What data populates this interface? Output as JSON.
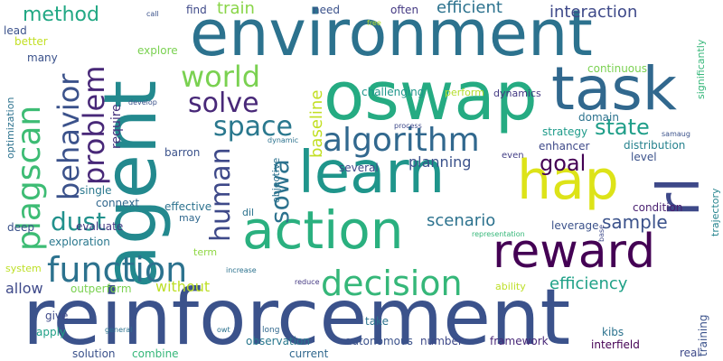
{
  "words": [
    {
      "text": "reinforcement",
      "size": 86,
      "color": "#3b528b",
      "vertical": false
    },
    {
      "text": "agent",
      "size": 80,
      "color": "#23898e",
      "vertical": true
    },
    {
      "text": "environment",
      "size": 70,
      "color": "#2c728e",
      "vertical": false
    },
    {
      "text": "oswap",
      "size": 74,
      "color": "#25ab82",
      "vertical": false
    },
    {
      "text": "task",
      "size": 66,
      "color": "#31688e",
      "vertical": false
    },
    {
      "text": "learn",
      "size": 64,
      "color": "#1f958b",
      "vertical": false
    },
    {
      "text": "hap",
      "size": 60,
      "color": "#dde318",
      "vertical": false
    },
    {
      "text": "rl",
      "size": 64,
      "color": "#3e4989",
      "vertical": true
    },
    {
      "text": "action",
      "size": 58,
      "color": "#2ab07f",
      "vertical": false
    },
    {
      "text": "reward",
      "size": 52,
      "color": "#440154",
      "vertical": false
    },
    {
      "text": "function",
      "size": 38,
      "color": "#2c728e",
      "vertical": false
    },
    {
      "text": "decision",
      "size": 38,
      "color": "#35b779",
      "vertical": false
    },
    {
      "text": "algorithm",
      "size": 36,
      "color": "#31688e",
      "vertical": false
    },
    {
      "text": "plagscan",
      "size": 36,
      "color": "#3dbc74",
      "vertical": true
    },
    {
      "text": "behavior",
      "size": 32,
      "color": "#3b528b",
      "vertical": true
    },
    {
      "text": "problem",
      "size": 32,
      "color": "#482878",
      "vertical": true
    },
    {
      "text": "world",
      "size": 32,
      "color": "#7ad151",
      "vertical": false
    },
    {
      "text": "solve",
      "size": 30,
      "color": "#482878",
      "vertical": false
    },
    {
      "text": "space",
      "size": 30,
      "color": "#2a788e",
      "vertical": false
    },
    {
      "text": "human",
      "size": 30,
      "color": "#3e4989",
      "vertical": true
    },
    {
      "text": "sowa",
      "size": 28,
      "color": "#2c728e",
      "vertical": true
    },
    {
      "text": "dust",
      "size": 28,
      "color": "#21918c",
      "vertical": false
    },
    {
      "text": "state",
      "size": 24,
      "color": "#1f9e89",
      "vertical": false
    },
    {
      "text": "goal",
      "size": 24,
      "color": "#440154",
      "vertical": false
    },
    {
      "text": "method",
      "size": 22,
      "color": "#22a884",
      "vertical": false
    },
    {
      "text": "sample",
      "size": 20,
      "color": "#3b528b",
      "vertical": false
    },
    {
      "text": "baseline",
      "size": 18,
      "color": "#c2df23",
      "vertical": true
    },
    {
      "text": "efficiency",
      "size": 18,
      "color": "#1fa187",
      "vertical": false
    },
    {
      "text": "train",
      "size": 18,
      "color": "#89d548",
      "vertical": false
    },
    {
      "text": "efficient",
      "size": 18,
      "color": "#2c728e",
      "vertical": false
    },
    {
      "text": "interaction",
      "size": 18,
      "color": "#3e4989",
      "vertical": false
    },
    {
      "text": "scenario",
      "size": 18,
      "color": "#2c728e",
      "vertical": false
    },
    {
      "text": "planning",
      "size": 16,
      "color": "#3b528b",
      "vertical": false
    },
    {
      "text": "allow",
      "size": 16,
      "color": "#3e4989",
      "vertical": false
    },
    {
      "text": "without",
      "size": 16,
      "color": "#bddf26",
      "vertical": false
    },
    {
      "text": "require",
      "size": 14,
      "color": "#46337e",
      "vertical": true
    },
    {
      "text": "challenging",
      "size": 12,
      "color": "#1f968b",
      "vertical": false
    },
    {
      "text": "perform",
      "size": 11,
      "color": "#b5de2b",
      "vertical": false
    },
    {
      "text": "dynamics",
      "size": 11,
      "color": "#443983",
      "vertical": false
    },
    {
      "text": "continuous",
      "size": 12,
      "color": "#7ad151",
      "vertical": false
    },
    {
      "text": "significantly",
      "size": 11,
      "color": "#35b779",
      "vertical": true
    },
    {
      "text": "objective",
      "size": 11,
      "color": "#2c728e",
      "vertical": true
    },
    {
      "text": "domain",
      "size": 12,
      "color": "#2c728e",
      "vertical": false
    },
    {
      "text": "strategy",
      "size": 12,
      "color": "#1e9b8a",
      "vertical": false
    },
    {
      "text": "enhancer",
      "size": 12,
      "color": "#3e4989",
      "vertical": false
    },
    {
      "text": "distribution",
      "size": 12,
      "color": "#26828e",
      "vertical": false
    },
    {
      "text": "level",
      "size": 12,
      "color": "#3b528b",
      "vertical": false
    },
    {
      "text": "condition",
      "size": 12,
      "color": "#481f70",
      "vertical": false
    },
    {
      "text": "trajectory",
      "size": 11,
      "color": "#25848e",
      "vertical": true
    },
    {
      "text": "leverage",
      "size": 12,
      "color": "#3b528b",
      "vertical": false
    },
    {
      "text": "several",
      "size": 12,
      "color": "#3e4989",
      "vertical": false
    },
    {
      "text": "even",
      "size": 10,
      "color": "#433e85",
      "vertical": false
    },
    {
      "text": "barron",
      "size": 12,
      "color": "#3b528b",
      "vertical": false
    },
    {
      "text": "single",
      "size": 12,
      "color": "#2a788e",
      "vertical": false
    },
    {
      "text": "connext",
      "size": 12,
      "color": "#31688e",
      "vertical": false
    },
    {
      "text": "effective",
      "size": 12,
      "color": "#2c728e",
      "vertical": false
    },
    {
      "text": "may",
      "size": 11,
      "color": "#31688e",
      "vertical": false
    },
    {
      "text": "dil",
      "size": 11,
      "color": "#2c728e",
      "vertical": false
    },
    {
      "text": "deep",
      "size": 12,
      "color": "#3b528b",
      "vertical": false
    },
    {
      "text": "evaluate",
      "size": 12,
      "color": "#443983",
      "vertical": false
    },
    {
      "text": "exploration",
      "size": 12,
      "color": "#2a788e",
      "vertical": false
    },
    {
      "text": "term",
      "size": 11,
      "color": "#8fd744",
      "vertical": false
    },
    {
      "text": "system",
      "size": 11,
      "color": "#bddf26",
      "vertical": false
    },
    {
      "text": "outperform",
      "size": 12,
      "color": "#7ad151",
      "vertical": false
    },
    {
      "text": "give",
      "size": 12,
      "color": "#3e4989",
      "vertical": false
    },
    {
      "text": "apply",
      "size": 12,
      "color": "#1fa187",
      "vertical": false
    },
    {
      "text": "general",
      "size": 8,
      "color": "#2c728e",
      "vertical": false
    },
    {
      "text": "owt",
      "size": 8,
      "color": "#2c728e",
      "vertical": false
    },
    {
      "text": "long",
      "size": 9,
      "color": "#31688e",
      "vertical": false
    },
    {
      "text": "take",
      "size": 12,
      "color": "#2c728e",
      "vertical": false
    },
    {
      "text": "observation",
      "size": 12,
      "color": "#2a788e",
      "vertical": false
    },
    {
      "text": "autonomous",
      "size": 12,
      "color": "#3b528b",
      "vertical": false
    },
    {
      "text": "number",
      "size": 12,
      "color": "#3e4989",
      "vertical": false
    },
    {
      "text": "framework",
      "size": 12,
      "color": "#482878",
      "vertical": false
    },
    {
      "text": "interfield",
      "size": 12,
      "color": "#440154",
      "vertical": false
    },
    {
      "text": "real",
      "size": 12,
      "color": "#3e4989",
      "vertical": false
    },
    {
      "text": "training",
      "size": 12,
      "color": "#3b528b",
      "vertical": true
    },
    {
      "text": "kibs",
      "size": 12,
      "color": "#2c728e",
      "vertical": false
    },
    {
      "text": "solution",
      "size": 12,
      "color": "#3b528b",
      "vertical": false
    },
    {
      "text": "combine",
      "size": 12,
      "color": "#35b779",
      "vertical": false
    },
    {
      "text": "current",
      "size": 12,
      "color": "#31688e",
      "vertical": false
    },
    {
      "text": "ability",
      "size": 11,
      "color": "#bddf26",
      "vertical": false
    },
    {
      "text": "reduce",
      "size": 8,
      "color": "#443983",
      "vertical": false
    },
    {
      "text": "increase",
      "size": 8,
      "color": "#2c728e",
      "vertical": false
    },
    {
      "text": "representation",
      "size": 8,
      "color": "#35b779",
      "vertical": false
    },
    {
      "text": "base",
      "size": 8,
      "color": "#3e4989",
      "vertical": true
    },
    {
      "text": "process",
      "size": 8,
      "color": "#3e4989",
      "vertical": false
    },
    {
      "text": "dynamic",
      "size": 8,
      "color": "#2c728e",
      "vertical": false
    },
    {
      "text": "develop",
      "size": 8,
      "color": "#3b528b",
      "vertical": false
    },
    {
      "text": "explore",
      "size": 12,
      "color": "#7ad151",
      "vertical": false
    },
    {
      "text": "find",
      "size": 12,
      "color": "#3e4989",
      "vertical": false
    },
    {
      "text": "need",
      "size": 12,
      "color": "#3b528b",
      "vertical": false
    },
    {
      "text": "often",
      "size": 12,
      "color": "#443983",
      "vertical": false
    },
    {
      "text": "free",
      "size": 8,
      "color": "#b5de2b",
      "vertical": false
    },
    {
      "text": "call",
      "size": 8,
      "color": "#3b528b",
      "vertical": false
    },
    {
      "text": "samaug",
      "size": 8,
      "color": "#3b528b",
      "vertical": false
    },
    {
      "text": "lead",
      "size": 12,
      "color": "#3b528b",
      "vertical": false
    },
    {
      "text": "better",
      "size": 12,
      "color": "#c2df23",
      "vertical": false
    },
    {
      "text": "many",
      "size": 12,
      "color": "#3b528b",
      "vertical": false
    },
    {
      "text": "optimization",
      "size": 11,
      "color": "#2c728e",
      "vertical": true
    }
  ]
}
